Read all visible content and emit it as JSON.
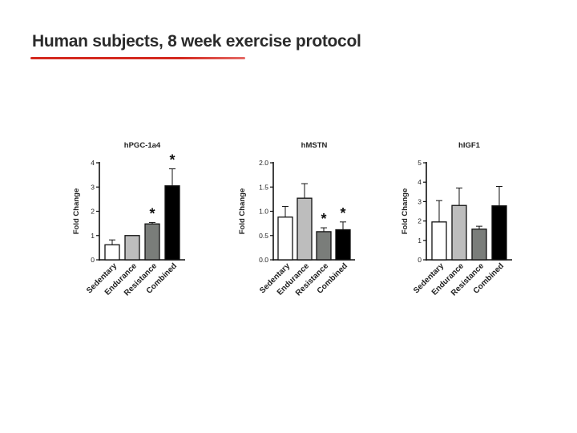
{
  "slide": {
    "title": "Human subjects, 8 week exercise protocol"
  },
  "colors": {
    "title_text": "#2b2b2b",
    "underline": "#d42a20",
    "axis": "#111111",
    "sedentary": "#ffffff",
    "endurance": "#bdbdbd",
    "resistance": "#7a7d7a",
    "combined": "#000000"
  },
  "chart_data": [
    {
      "type": "bar",
      "title": "hPGC-1a4",
      "ylabel": "Fold Change",
      "xlabel": "",
      "ylim": [
        0,
        4
      ],
      "yticks": [
        "0",
        "1",
        "2",
        "3",
        "4"
      ],
      "yticks_values": [
        0,
        1,
        2,
        3,
        4
      ],
      "categories": [
        "Sedentary",
        "Endurance",
        "Resistance",
        "Combined"
      ],
      "values": [
        0.62,
        1.0,
        1.48,
        3.05
      ],
      "errors": [
        0.2,
        0.0,
        0.06,
        0.7
      ],
      "significance": [
        "",
        "",
        "*",
        "*"
      ],
      "grid": false
    },
    {
      "type": "bar",
      "title": "hMSTN",
      "ylabel": "Fold Change",
      "xlabel": "",
      "ylim": [
        0,
        2
      ],
      "yticks": [
        "0.0",
        "0.5",
        "1.0",
        "1.5",
        "2.0"
      ],
      "yticks_values": [
        0,
        0.5,
        1.0,
        1.5,
        2.0
      ],
      "categories": [
        "Sedentary",
        "Endurance",
        "Resistance",
        "Combined"
      ],
      "values": [
        0.88,
        1.27,
        0.58,
        0.62
      ],
      "errors": [
        0.22,
        0.3,
        0.08,
        0.16
      ],
      "significance": [
        "",
        "",
        "*",
        "*"
      ],
      "grid": false
    },
    {
      "type": "bar",
      "title": "hIGF1",
      "ylabel": "Fold Change",
      "xlabel": "",
      "ylim": [
        0,
        5
      ],
      "yticks": [
        "0",
        "1",
        "2",
        "3",
        "4",
        "5"
      ],
      "yticks_values": [
        0,
        1,
        2,
        3,
        4,
        5
      ],
      "categories": [
        "Sedentary",
        "Endurance",
        "Resistance",
        "Combined"
      ],
      "values": [
        1.95,
        2.8,
        1.58,
        2.78
      ],
      "errors": [
        1.1,
        0.9,
        0.15,
        1.0
      ],
      "significance": [
        "",
        "",
        "",
        ""
      ],
      "grid": false
    }
  ]
}
